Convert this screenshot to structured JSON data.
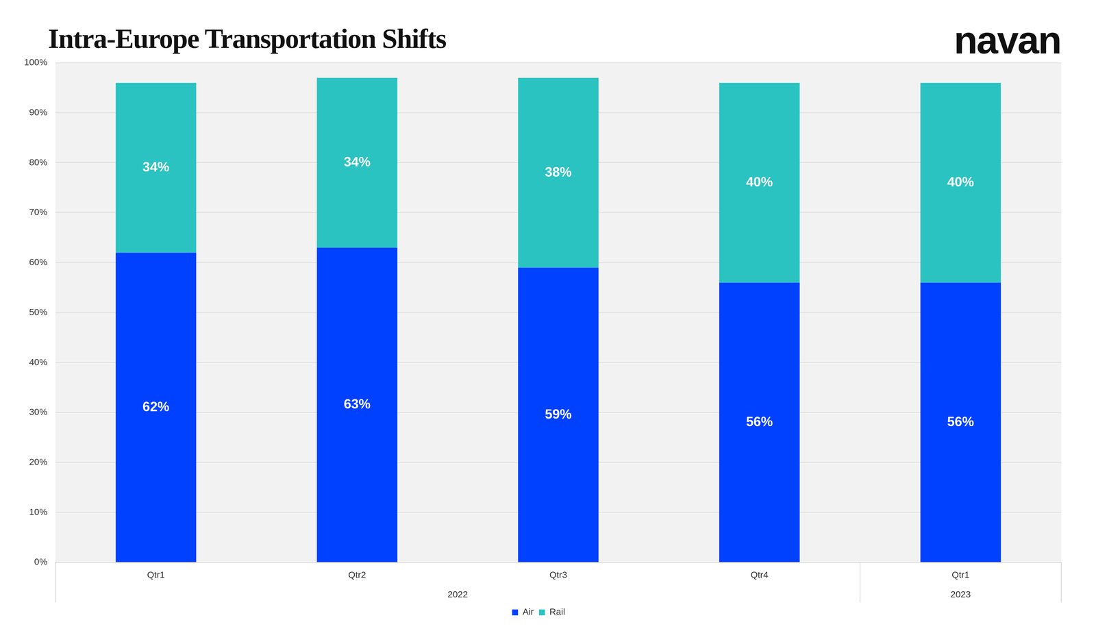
{
  "chart_data": {
    "type": "bar",
    "title": "Intra-Europe Transportation Shifts",
    "annotations": [
      "navan"
    ],
    "categories": [
      "Qtr1",
      "Qtr2",
      "Qtr3",
      "Qtr4",
      "Qtr1"
    ],
    "x_group_labels": [
      "2022",
      "2022",
      "2022",
      "2022",
      "2023"
    ],
    "series": [
      {
        "name": "Air",
        "color": "#0040ff",
        "values": [
          62,
          63,
          59,
          56,
          56
        ],
        "value_labels": [
          "62%",
          "63%",
          "59%",
          "56%",
          "56%"
        ]
      },
      {
        "name": "Rail",
        "color": "#2ac3c1",
        "values": [
          34,
          34,
          38,
          40,
          40
        ],
        "value_labels": [
          "34%",
          "34%",
          "38%",
          "40%",
          "40%"
        ]
      }
    ],
    "ylim": [
      0,
      100
    ],
    "yticks": [
      {
        "value": 0,
        "label": "0%"
      },
      {
        "value": 10,
        "label": "10%"
      },
      {
        "value": 20,
        "label": "20%"
      },
      {
        "value": 30,
        "label": "30%"
      },
      {
        "value": 40,
        "label": "40%"
      },
      {
        "value": 50,
        "label": "50%"
      },
      {
        "value": 60,
        "label": "60%"
      },
      {
        "value": 70,
        "label": "70%"
      },
      {
        "value": 80,
        "label": "80%"
      },
      {
        "value": 90,
        "label": "90%"
      },
      {
        "value": 100,
        "label": "100%"
      }
    ],
    "grid": true,
    "stacked": true,
    "data_labels": true,
    "legend": "bottom"
  }
}
